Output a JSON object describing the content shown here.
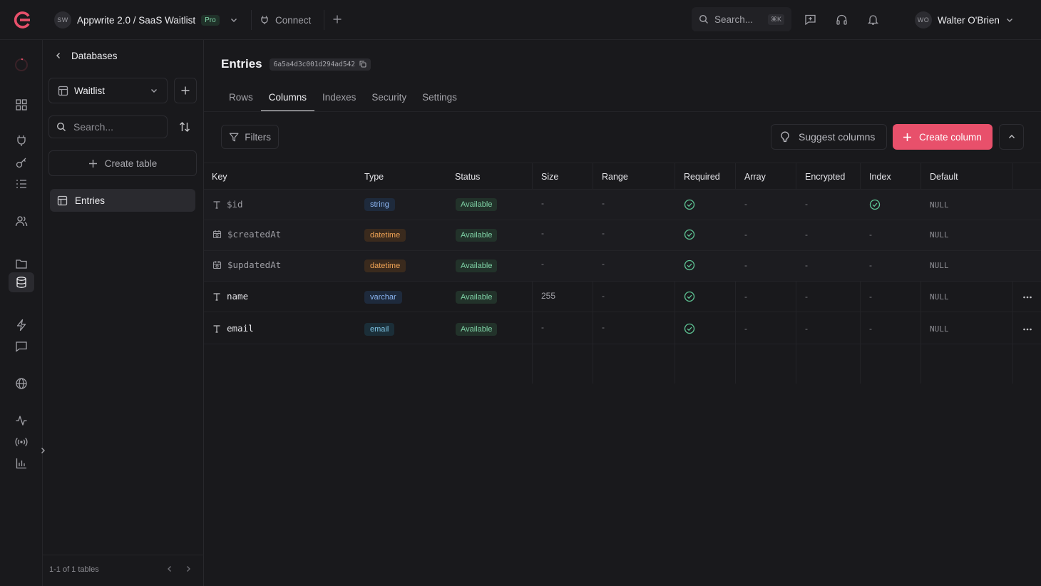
{
  "header": {
    "project_initials": "SW",
    "project_name": "Appwrite 2.0 / SaaS Waitlist",
    "plan_badge": "Pro",
    "connect_label": "Connect",
    "search_placeholder": "Search...",
    "search_shortcut": "⌘K",
    "user_initials": "WO",
    "user_name": "Walter O'Brien"
  },
  "sidebar": {
    "back_label": "Databases",
    "database_selected": "Waitlist",
    "search_placeholder": "Search...",
    "create_table_label": "Create table",
    "tables": [
      {
        "label": "Entries"
      }
    ],
    "pagination_text": "1-1 of 1 tables"
  },
  "page": {
    "title": "Entries",
    "table_id": "6a5a4d3c001d294ad542",
    "tabs": [
      {
        "label": "Rows"
      },
      {
        "label": "Columns"
      },
      {
        "label": "Indexes"
      },
      {
        "label": "Security"
      },
      {
        "label": "Settings"
      }
    ],
    "active_tab": "Columns",
    "filters_label": "Filters",
    "suggest_label": "Suggest columns",
    "create_label": "Create column"
  },
  "table": {
    "headers": {
      "key": "Key",
      "type": "Type",
      "status": "Status",
      "size": "Size",
      "range": "Range",
      "required": "Required",
      "array": "Array",
      "encrypted": "Encrypted",
      "index": "Index",
      "default": "Default"
    },
    "rows": [
      {
        "key": "$id",
        "type": "string",
        "status": "Available",
        "size": "-",
        "range": "-",
        "array": "-",
        "encrypted": "-",
        "index": "",
        "default": "NULL"
      },
      {
        "key": "$createdAt",
        "type": "datetime",
        "status": "Available",
        "size": "-",
        "range": "-",
        "array": "-",
        "encrypted": "-",
        "index": "-",
        "default": "NULL"
      },
      {
        "key": "$updatedAt",
        "type": "datetime",
        "status": "Available",
        "size": "-",
        "range": "-",
        "array": "-",
        "encrypted": "-",
        "index": "-",
        "default": "NULL"
      },
      {
        "key": "name",
        "type": "varchar",
        "status": "Available",
        "size": "255",
        "range": "-",
        "array": "-",
        "encrypted": "-",
        "index": "-",
        "default": "NULL"
      },
      {
        "key": "email",
        "type": "email",
        "status": "Available",
        "size": "-",
        "range": "-",
        "array": "-",
        "encrypted": "-",
        "index": "-",
        "default": "NULL"
      }
    ]
  },
  "colors": {
    "accent": "#e8506b",
    "success": "#5fc796",
    "background": "#19191c"
  }
}
